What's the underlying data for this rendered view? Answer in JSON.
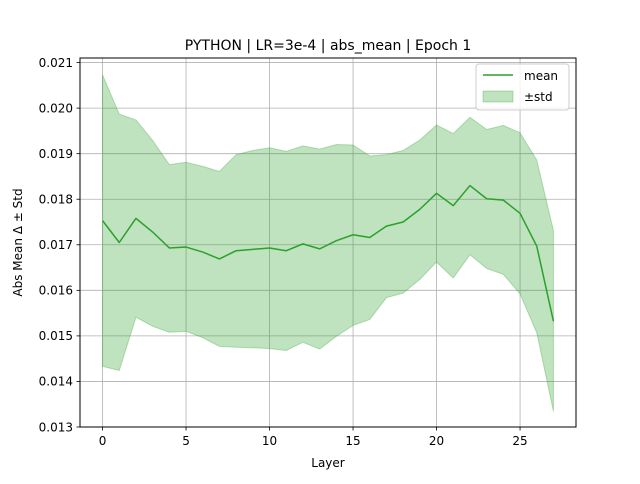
{
  "chart_data": {
    "type": "line",
    "title": "PYTHON | LR=3e-4 | abs_mean | Epoch 1",
    "xlabel": "Layer",
    "ylabel": "Abs Mean Δ ± Std",
    "xlim": [
      -1.35,
      28.35
    ],
    "ylim": [
      0.013,
      0.0211
    ],
    "grid": true,
    "legend_placement": "upper right",
    "x_ticks": [
      0,
      5,
      10,
      15,
      20,
      25
    ],
    "x_tick_labels": [
      "0",
      "5",
      "10",
      "15",
      "20",
      "25"
    ],
    "y_ticks": [
      0.013,
      0.014,
      0.015,
      0.016,
      0.017,
      0.018,
      0.019,
      0.02,
      0.021
    ],
    "y_tick_labels": [
      "0.013",
      "0.014",
      "0.015",
      "0.016",
      "0.017",
      "0.018",
      "0.019",
      "0.020",
      "0.021"
    ],
    "x": [
      0,
      1,
      2,
      3,
      4,
      5,
      6,
      7,
      8,
      9,
      10,
      11,
      12,
      13,
      14,
      15,
      16,
      17,
      18,
      19,
      20,
      21,
      22,
      23,
      24,
      25,
      26,
      27
    ],
    "series": [
      {
        "name": "mean",
        "color": "#2ca02c",
        "values": [
          0.01753,
          0.01705,
          0.01758,
          0.01728,
          0.01693,
          0.01695,
          0.01684,
          0.01669,
          0.01687,
          0.0169,
          0.01693,
          0.01687,
          0.01702,
          0.01691,
          0.01709,
          0.01722,
          0.01716,
          0.01741,
          0.0175,
          0.01778,
          0.01813,
          0.01786,
          0.0183,
          0.01801,
          0.01798,
          0.01769,
          0.01697,
          0.01532
        ]
      },
      {
        "name": "±std",
        "color": "#2ca02c",
        "fill_alpha": 0.3,
        "upper": [
          0.02073,
          0.01987,
          0.01974,
          0.01929,
          0.01876,
          0.01881,
          0.01872,
          0.01861,
          0.01898,
          0.01907,
          0.01913,
          0.01905,
          0.01917,
          0.0191,
          0.0192,
          0.01919,
          0.01895,
          0.01898,
          0.01907,
          0.0193,
          0.01963,
          0.01944,
          0.0198,
          0.01953,
          0.01962,
          0.01946,
          0.01886,
          0.01731
        ],
        "lower": [
          0.01433,
          0.01424,
          0.01541,
          0.01521,
          0.01508,
          0.0151,
          0.01496,
          0.01477,
          0.01475,
          0.01474,
          0.01472,
          0.01468,
          0.01486,
          0.01471,
          0.01499,
          0.01523,
          0.01536,
          0.01584,
          0.01594,
          0.01624,
          0.01662,
          0.01627,
          0.01678,
          0.01648,
          0.01635,
          0.01592,
          0.01507,
          0.01334
        ]
      }
    ]
  }
}
